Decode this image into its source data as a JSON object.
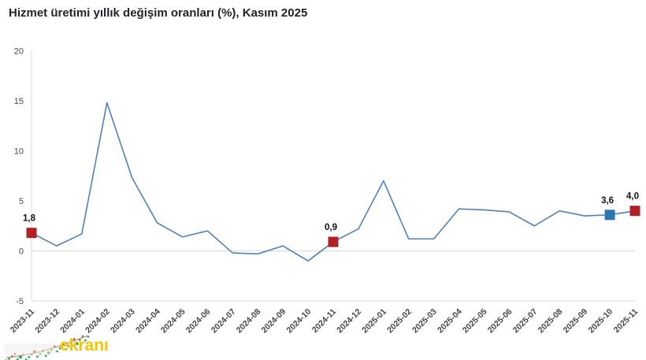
{
  "title": "Hizmet üretimi yıllık değişim oranları (%), Kasım 2025",
  "watermark": {
    "text": "ekranı",
    "color": "#f2c500"
  },
  "chart_data": {
    "type": "line",
    "title": "Hizmet üretimi yıllık değişim oranları (%), Kasım 2025",
    "x": [
      "2023-11",
      "2023-12",
      "2024-01",
      "2024-02",
      "2024-03",
      "2024-04",
      "2024-05",
      "2024-06",
      "2024-07",
      "2024-08",
      "2024-09",
      "2024-10",
      "2024-11",
      "2024-12",
      "2025-01",
      "2025-02",
      "2025-03",
      "2025-04",
      "2025-05",
      "2025-06",
      "2025-07",
      "2025-08",
      "2025-09",
      "2025-10",
      "2025-11"
    ],
    "series": [
      {
        "name": "Hizmet üretimi yıllık değişim oranı (%)",
        "values": [
          1.8,
          0.5,
          1.7,
          14.8,
          7.3,
          2.8,
          1.4,
          2.0,
          -0.2,
          -0.3,
          0.5,
          -1.0,
          0.9,
          2.2,
          7.0,
          1.2,
          1.2,
          4.2,
          4.1,
          3.9,
          2.5,
          4.0,
          3.5,
          3.6,
          4.0
        ]
      }
    ],
    "highlighted_points": [
      {
        "x": "2023-11",
        "value": 1.8,
        "label": "1,8",
        "marker_color": "#b22025"
      },
      {
        "x": "2024-11",
        "value": 0.9,
        "label": "0,9",
        "marker_color": "#b22025"
      },
      {
        "x": "2025-10",
        "value": 3.6,
        "label": "3,6",
        "marker_color": "#2e75b6"
      },
      {
        "x": "2025-11",
        "value": 4.0,
        "label": "4,0",
        "marker_color": "#b22025"
      }
    ],
    "ylim": [
      -5,
      20
    ],
    "yticks": [
      20,
      15,
      10,
      5,
      0,
      -5
    ],
    "xlabel": "",
    "ylabel": "",
    "line_color": "#4f81bd",
    "axis_color": "#d9d9d9",
    "grid": "zero-line-only",
    "legend": "none"
  }
}
